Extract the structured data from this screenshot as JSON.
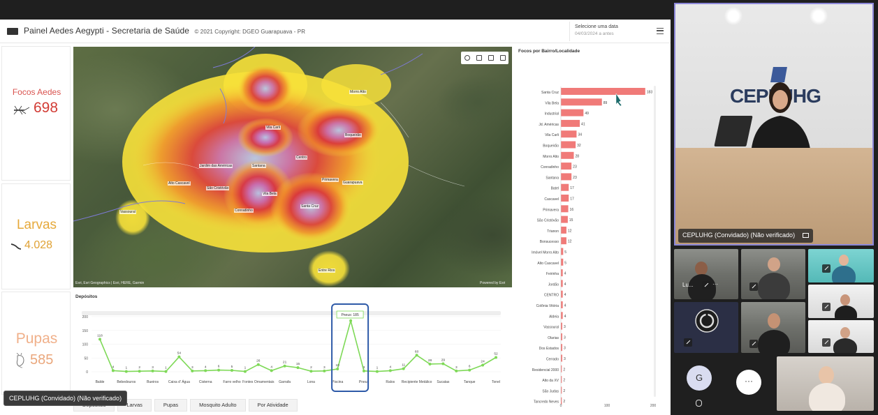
{
  "header": {
    "title": "Painel Aedes Aegypti - Secretaria de Saúde",
    "copyright": "© 2021 Copyright: DGEO Guarapuava - PR",
    "date_label": "Selecione uma data",
    "date_value": "04/03/2024 a antes"
  },
  "kpis": {
    "focos": {
      "label": "Focos Aedes",
      "value": "698"
    },
    "larvas": {
      "label": "Larvas",
      "value": "4.028"
    },
    "pupas": {
      "label": "Pupas",
      "value": "585"
    }
  },
  "map": {
    "attribution": "Esri, Esri Geographics | Esri, HERE, Garmin",
    "powered": "Powered by Esri",
    "places": [
      {
        "label": "Vila Carli"
      },
      {
        "label": "Primavera"
      },
      {
        "label": "Vila Bela"
      },
      {
        "label": "Centro"
      },
      {
        "label": "Santa Cruz"
      },
      {
        "label": "Guarapuava"
      },
      {
        "label": "Alto Cascavel"
      },
      {
        "label": "Vassoural"
      },
      {
        "label": "Entre Rios"
      },
      {
        "label": "Jardim das Américas"
      },
      {
        "label": "Boqueirão"
      },
      {
        "label": "Morro Alto"
      },
      {
        "label": "Santana"
      },
      {
        "label": "Conradinho"
      },
      {
        "label": "São Cristóvão"
      }
    ]
  },
  "chart_data": [
    {
      "type": "bar",
      "title": "Focos por Bairro/Localidade",
      "orientation": "horizontal",
      "categories": [
        "Santa Cruz",
        "Vila Bela",
        "Industrial",
        "Jd. Américas",
        "Vila Carli",
        "Boqueirão",
        "Morro Alto",
        "Conradinho",
        "Santana",
        "Batel",
        "Cascavel",
        "Primavera",
        "São Cristóvão",
        "Trianon",
        "Bonsucesso",
        "Imóvel Morro Alto",
        "Alto Cascavel",
        "Feirinha",
        "Jordão",
        "CENTRO",
        "Colônia Vitória",
        "Aldeia",
        "Vassoural",
        "Olarias",
        "Dos Estados",
        "Cerrado",
        "Residencial 2000",
        "Alto da XV",
        "São Judas",
        "Tancredo Neves"
      ],
      "values": [
        183,
        89,
        49,
        41,
        34,
        32,
        28,
        23,
        23,
        17,
        17,
        16,
        15,
        12,
        12,
        5,
        5,
        4,
        4,
        4,
        4,
        4,
        3,
        3,
        3,
        3,
        2,
        2,
        2,
        2
      ],
      "xlim": [
        0,
        200
      ],
      "xticks": [
        "0",
        "100",
        "200"
      ],
      "color": "#f07a78"
    },
    {
      "type": "line",
      "title": "Depósitos",
      "categories": [
        "Balde",
        "Bebedouros",
        "Bueiros",
        "Caixa d' Água",
        "Cisterna",
        "Farro velho",
        "Fontes Ornamentais",
        "Garrafa",
        "Lona",
        "Piscina",
        "Pneus",
        "Ralos",
        "Recipiente Metálico",
        "Sucatas",
        "Tanque",
        "Tonel"
      ],
      "point_values": [
        118,
        4,
        1,
        2,
        3,
        1,
        54,
        3,
        4,
        6,
        5,
        1,
        26,
        4,
        21,
        15,
        2,
        3,
        10,
        185,
        3,
        1,
        4,
        11,
        60,
        28,
        29,
        3,
        6,
        24,
        52
      ],
      "ylim": [
        0,
        200
      ],
      "yticks": [
        "0",
        "50",
        "100",
        "150",
        "200"
      ],
      "tooltip": "Pneus: 185",
      "color": "#7ed957"
    }
  ],
  "tabs": [
    "Depósitos",
    "Larvas",
    "Pupas",
    "Mosquito Adulto",
    "Por Atividade"
  ],
  "call": {
    "speaker_logo": "CEPLUHG",
    "speaker_name": "CEPLUHG (Convidado) (Não verificado)",
    "tile_name_lu": "Lu...",
    "avatar_letter": "G",
    "more_label": "···"
  },
  "toast": "CEPLUHG (Convidado) (Não verificado)"
}
